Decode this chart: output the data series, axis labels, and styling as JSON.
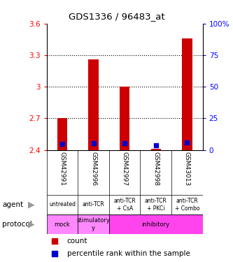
{
  "title": "GDS1336 / 96483_at",
  "samples": [
    "GSM42991",
    "GSM42996",
    "GSM42997",
    "GSM42998",
    "GSM43013"
  ],
  "bar_bottom": 2.4,
  "red_tops": [
    2.7,
    3.26,
    3.0,
    2.41,
    3.46
  ],
  "blue_values": [
    2.455,
    2.465,
    2.462,
    2.445,
    2.472
  ],
  "ylim": [
    2.4,
    3.6
  ],
  "yticks_left": [
    2.4,
    2.7,
    3.0,
    3.3,
    3.6
  ],
  "yticks_right": [
    0,
    25,
    50,
    75,
    100
  ],
  "ytick_labels_left": [
    "2.4",
    "2.7",
    "3",
    "3.3",
    "3.6"
  ],
  "ytick_labels_right": [
    "0",
    "25",
    "50",
    "75",
    "100%"
  ],
  "bar_color": "#cc0000",
  "blue_color": "#0000cc",
  "agent_labels": [
    "untreated",
    "anti-TCR",
    "anti-TCR\n+ CsA",
    "anti-TCR\n+ PKCi",
    "anti-TCR\n+ Combo"
  ],
  "agent_bg_color": "#ccffcc",
  "sample_bg_color": "#cccccc",
  "proto_mock_color": "#ff88ff",
  "proto_stim_color": "#ff88ff",
  "proto_inhib_color": "#ff44ee",
  "legend_count_color": "#cc0000",
  "legend_pct_color": "#0000cc"
}
